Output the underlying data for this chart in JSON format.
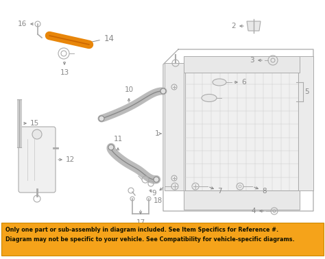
{
  "bg_color": "#ffffff",
  "banner_color": "#f5a31a",
  "banner_text": "Only one part or sub-assembly in diagram included. See Item Specifics for Reference #.\nDiagram may not be specific to your vehicle. See Compatibility for vehicle-specific diagrams.",
  "banner_fontsize": 5.8,
  "label_color": "#888888",
  "label_fontsize": 7.5,
  "highlight_color": "#e8860a",
  "fig_width": 4.74,
  "fig_height": 3.78,
  "dpi": 100
}
